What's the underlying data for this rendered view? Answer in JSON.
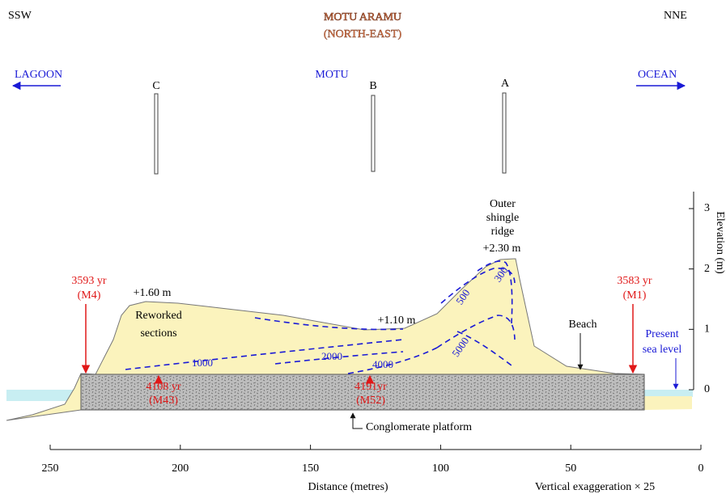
{
  "header": {
    "left": "SSW",
    "title": "MOTU ARAMU",
    "subtitle": "(NORTH-EAST)",
    "right": "NNE"
  },
  "directions": {
    "lagoon": "LAGOON",
    "motu": "MOTU",
    "ocean": "OCEAN"
  },
  "cores": [
    "C",
    "B",
    "A"
  ],
  "labels": {
    "ridge": [
      "Outer",
      "shingle",
      "ridge"
    ],
    "ridge_height": "+2.30 m",
    "high": "+1.60 m",
    "reworked": [
      "Reworked",
      "sections"
    ],
    "low": "+1.10 m",
    "beach": "Beach",
    "sea_level": [
      "Present",
      "sea level"
    ],
    "platform": "Conglomerate platform"
  },
  "dates": [
    {
      "age": "3593 yr",
      "sample": "(M4)"
    },
    {
      "age": "3583 yr",
      "sample": "(M1)"
    },
    {
      "age": "4108 yr",
      "sample": "(M43)"
    },
    {
      "age": "4191yr",
      "sample": "(M52)"
    }
  ],
  "contours": [
    "1000",
    "2000",
    "4000",
    "5000",
    "500",
    "300"
  ],
  "x_axis": {
    "label": "Distance (metres)",
    "ticks": [
      250,
      200,
      150,
      100,
      50,
      0
    ]
  },
  "y_axis": {
    "label": "Elevation (m)",
    "ticks": [
      0,
      1,
      2,
      3
    ]
  },
  "note": "Vertical exaggeration × 25"
}
